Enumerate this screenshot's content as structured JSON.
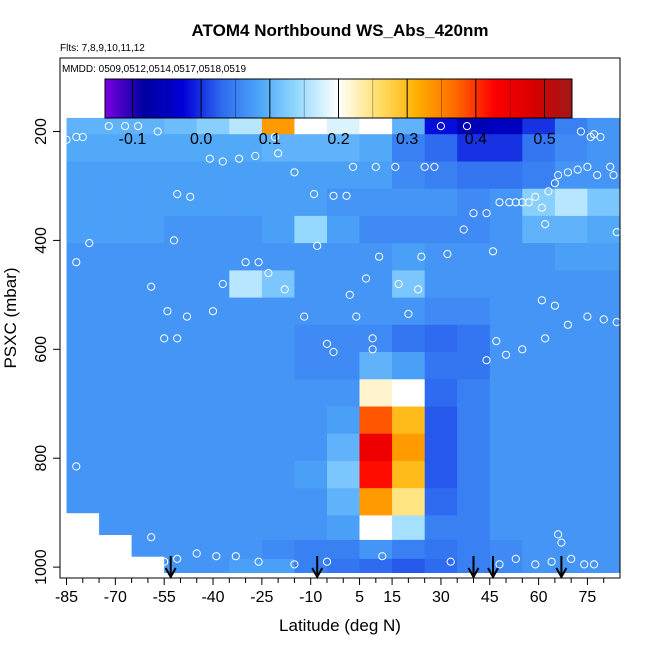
{
  "chart_data": {
    "type": "heatmap",
    "title": "ATOM4 Northbound WS_Abs_420nm",
    "flights_note": "Flts: 7,8,9,10,11,12",
    "dates_note": "MMDD: 0509,0512,0514,0517,0518,0519",
    "xlabel": "Latitude (deg N)",
    "ylabel": "PSXC (mbar)",
    "x_ticks": [
      -85,
      -70,
      -55,
      -40,
      -25,
      -10,
      5,
      15,
      30,
      45,
      60,
      75
    ],
    "x_tick_labels": [
      "-85",
      "-70",
      "-55",
      "-40",
      "-25",
      "-10",
      "5",
      "15",
      "30",
      "45",
      "60",
      "75"
    ],
    "y_ticks": [
      200,
      400,
      600,
      800,
      1000
    ],
    "y_tick_labels": [
      "200",
      "400",
      "600",
      "800",
      "1000"
    ],
    "xlim": [
      -87,
      85
    ],
    "ylim": [
      1020,
      65
    ],
    "y_reversed": true,
    "colorbar": {
      "range": [
        -0.14,
        0.54
      ],
      "ticks": [
        -0.1,
        0.0,
        0.1,
        0.2,
        0.3,
        0.4,
        0.5
      ],
      "tick_labels": [
        "-0.1",
        "0.0",
        "0.1",
        "0.2",
        "0.3",
        "0.4",
        "0.5"
      ],
      "colors": [
        "#7a00e0",
        "#0000a0",
        "#0000d8",
        "#2e6bf0",
        "#4ea6f8",
        "#9adcff",
        "#ffffff",
        "#ffe070",
        "#ffb000",
        "#ff6a00",
        "#ff0000",
        "#d80000",
        "#a01818"
      ]
    },
    "arrow_latitudes": [
      -53,
      -8,
      40,
      46,
      67
    ],
    "columns": [
      {
        "lat": -80,
        "bottom": 900,
        "values": [
          0.1,
          0.09,
          0.08,
          0.08,
          0.08,
          0.07,
          0.07,
          0.07,
          0.07,
          0.07,
          0.07,
          0.07,
          0.07,
          0.07,
          0.07,
          0.07,
          0.07,
          0.07
        ]
      },
      {
        "lat": -70,
        "bottom": 940,
        "values": [
          0.1,
          0.09,
          0.08,
          0.08,
          0.08,
          0.07,
          0.07,
          0.07,
          0.07,
          0.07,
          0.07,
          0.07,
          0.07,
          0.07,
          0.07,
          0.07,
          0.07,
          0.07
        ]
      },
      {
        "lat": -60,
        "bottom": 980,
        "values": [
          0.1,
          0.09,
          0.08,
          0.08,
          0.08,
          0.07,
          0.07,
          0.07,
          0.07,
          0.07,
          0.07,
          0.07,
          0.07,
          0.07,
          0.07,
          0.07,
          0.07,
          0.07
        ]
      },
      {
        "lat": -50,
        "bottom": 1010,
        "values": [
          0.11,
          0.09,
          0.08,
          0.08,
          0.07,
          0.07,
          0.07,
          0.07,
          0.07,
          0.07,
          0.07,
          0.07,
          0.07,
          0.07,
          0.07,
          0.07,
          0.07,
          0.07
        ]
      },
      {
        "lat": -40,
        "bottom": 1010,
        "values": [
          0.13,
          0.09,
          0.08,
          0.08,
          0.07,
          0.07,
          0.07,
          0.07,
          0.07,
          0.07,
          0.07,
          0.07,
          0.07,
          0.07,
          0.07,
          0.07,
          0.07,
          0.07
        ]
      },
      {
        "lat": -30,
        "bottom": 1010,
        "values": [
          0.16,
          0.09,
          0.08,
          0.08,
          0.07,
          0.07,
          0.16,
          0.07,
          0.07,
          0.07,
          0.07,
          0.07,
          0.07,
          0.07,
          0.07,
          0.07,
          0.07,
          0.08
        ]
      },
      {
        "lat": -20,
        "bottom": 1010,
        "values": [
          0.33,
          0.1,
          0.08,
          0.08,
          0.08,
          0.07,
          0.12,
          0.07,
          0.07,
          0.07,
          0.07,
          0.07,
          0.07,
          0.07,
          0.07,
          0.07,
          0.06,
          0.08
        ]
      },
      {
        "lat": -10,
        "bottom": 1010,
        "values": [
          0.2,
          0.1,
          0.08,
          0.08,
          0.14,
          0.07,
          0.07,
          0.07,
          0.06,
          0.06,
          0.07,
          0.07,
          0.07,
          0.08,
          0.07,
          0.07,
          0.05,
          0.05
        ]
      },
      {
        "lat": 0,
        "bottom": 1010,
        "values": [
          0.18,
          0.1,
          0.08,
          0.07,
          0.08,
          0.07,
          0.07,
          0.07,
          0.06,
          0.06,
          0.07,
          0.08,
          0.1,
          0.12,
          0.1,
          0.08,
          0.05,
          0.04
        ]
      },
      {
        "lat": 10,
        "bottom": 1010,
        "values": [
          0.2,
          0.09,
          0.08,
          0.07,
          0.06,
          0.07,
          0.07,
          0.07,
          0.06,
          0.1,
          0.22,
          0.38,
          0.45,
          0.42,
          0.33,
          0.2,
          0.07,
          0.03
        ]
      },
      {
        "lat": 20,
        "bottom": 1010,
        "values": [
          0.1,
          0.05,
          0.06,
          0.07,
          0.06,
          0.08,
          0.12,
          0.07,
          0.04,
          0.08,
          0.2,
          0.3,
          0.33,
          0.3,
          0.25,
          0.15,
          0.05,
          0.02
        ]
      },
      {
        "lat": 30,
        "bottom": 1010,
        "values": [
          -0.02,
          0.03,
          0.05,
          0.07,
          0.06,
          0.07,
          0.07,
          0.06,
          0.03,
          0.04,
          0.03,
          0.02,
          0.02,
          0.02,
          0.03,
          0.05,
          0.04,
          0.03
        ]
      },
      {
        "lat": 40,
        "bottom": 1010,
        "values": [
          -0.06,
          0.0,
          0.04,
          0.06,
          0.06,
          0.07,
          0.07,
          0.06,
          0.04,
          0.04,
          0.05,
          0.05,
          0.05,
          0.05,
          0.05,
          0.05,
          0.05,
          0.05
        ]
      },
      {
        "lat": 50,
        "bottom": 1010,
        "values": [
          -0.05,
          0.0,
          0.04,
          0.07,
          0.07,
          0.07,
          0.07,
          0.07,
          0.07,
          0.07,
          0.07,
          0.07,
          0.07,
          0.07,
          0.07,
          0.07,
          0.06,
          0.06
        ]
      },
      {
        "lat": 60,
        "bottom": 1010,
        "values": [
          0.0,
          0.04,
          0.05,
          0.13,
          0.1,
          0.07,
          0.07,
          0.07,
          0.07,
          0.07,
          0.07,
          0.07,
          0.07,
          0.07,
          0.07,
          0.07,
          0.07,
          0.07
        ]
      },
      {
        "lat": 70,
        "bottom": 1010,
        "values": [
          0.05,
          0.06,
          0.07,
          0.16,
          0.1,
          0.08,
          0.07,
          0.07,
          0.07,
          0.07,
          0.07,
          0.07,
          0.07,
          0.07,
          0.07,
          0.07,
          0.07,
          0.07
        ]
      },
      {
        "lat": 80,
        "bottom": 1010,
        "values": [
          0.07,
          0.07,
          0.07,
          0.12,
          0.09,
          0.08,
          0.07,
          0.07,
          0.07,
          0.07,
          0.07,
          0.07,
          0.07,
          0.07,
          0.07,
          0.07,
          0.07,
          0.07
        ]
      }
    ],
    "levels": [
      180,
      230,
      280,
      330,
      380,
      430,
      480,
      530,
      580,
      630,
      680,
      730,
      780,
      830,
      880,
      930,
      970,
      1000
    ],
    "points": [
      {
        "lat": -72,
        "p": 190
      },
      {
        "lat": -67,
        "p": 190
      },
      {
        "lat": -63,
        "p": 190
      },
      {
        "lat": -57,
        "p": 200
      },
      {
        "lat": -80,
        "p": 210
      },
      {
        "lat": -82,
        "p": 210
      },
      {
        "lat": -85,
        "p": 215
      },
      {
        "lat": -41,
        "p": 250
      },
      {
        "lat": -37,
        "p": 255
      },
      {
        "lat": -32,
        "p": 250
      },
      {
        "lat": -27,
        "p": 245
      },
      {
        "lat": -20,
        "p": 240
      },
      {
        "lat": -15,
        "p": 275
      },
      {
        "lat": -51,
        "p": 315
      },
      {
        "lat": -47,
        "p": 320
      },
      {
        "lat": -9,
        "p": 315
      },
      {
        "lat": -3,
        "p": 318
      },
      {
        "lat": 1,
        "p": 318
      },
      {
        "lat": 3,
        "p": 265
      },
      {
        "lat": 10,
        "p": 265
      },
      {
        "lat": 16,
        "p": 265
      },
      {
        "lat": 25,
        "p": 265
      },
      {
        "lat": 28,
        "p": 265
      },
      {
        "lat": -21,
        "p": 210
      },
      {
        "lat": -87,
        "p": 370
      },
      {
        "lat": -78,
        "p": 405
      },
      {
        "lat": -52,
        "p": 400
      },
      {
        "lat": -82,
        "p": 440
      },
      {
        "lat": -30,
        "p": 440
      },
      {
        "lat": -26,
        "p": 440
      },
      {
        "lat": -8,
        "p": 410
      },
      {
        "lat": 11,
        "p": 430
      },
      {
        "lat": 24,
        "p": 430
      },
      {
        "lat": 32,
        "p": 425
      },
      {
        "lat": 37,
        "p": 380
      },
      {
        "lat": -59,
        "p": 485
      },
      {
        "lat": -37,
        "p": 480
      },
      {
        "lat": -23,
        "p": 460
      },
      {
        "lat": -18,
        "p": 490
      },
      {
        "lat": 7,
        "p": 470
      },
      {
        "lat": 17,
        "p": 480
      },
      {
        "lat": 23,
        "p": 490
      },
      {
        "lat": 2,
        "p": 500
      },
      {
        "lat": -54,
        "p": 530
      },
      {
        "lat": -48,
        "p": 540
      },
      {
        "lat": -40,
        "p": 530
      },
      {
        "lat": -12,
        "p": 540
      },
      {
        "lat": 4,
        "p": 540
      },
      {
        "lat": 20,
        "p": 535
      },
      {
        "lat": -55,
        "p": 580
      },
      {
        "lat": -51,
        "p": 580
      },
      {
        "lat": -5,
        "p": 590
      },
      {
        "lat": -3,
        "p": 605
      },
      {
        "lat": 9,
        "p": 580
      },
      {
        "lat": 9,
        "p": 600
      },
      {
        "lat": 44,
        "p": 620
      },
      {
        "lat": 47,
        "p": 585
      },
      {
        "lat": 50,
        "p": 610
      },
      {
        "lat": 55,
        "p": 600
      },
      {
        "lat": 62,
        "p": 580
      },
      {
        "lat": 69,
        "p": 555
      },
      {
        "lat": 75,
        "p": 540
      },
      {
        "lat": 80,
        "p": 545
      },
      {
        "lat": 84,
        "p": 550
      },
      {
        "lat": 40,
        "p": 350
      },
      {
        "lat": 44,
        "p": 350
      },
      {
        "lat": 48,
        "p": 330
      },
      {
        "lat": 51,
        "p": 330
      },
      {
        "lat": 53,
        "p": 330
      },
      {
        "lat": 55,
        "p": 330
      },
      {
        "lat": 57,
        "p": 330
      },
      {
        "lat": 59,
        "p": 320
      },
      {
        "lat": 61,
        "p": 340
      },
      {
        "lat": 63,
        "p": 310
      },
      {
        "lat": 65,
        "p": 295
      },
      {
        "lat": 66,
        "p": 280
      },
      {
        "lat": 69,
        "p": 275
      },
      {
        "lat": 72,
        "p": 270
      },
      {
        "lat": 75,
        "p": 265
      },
      {
        "lat": 78,
        "p": 280
      },
      {
        "lat": 82,
        "p": 265
      },
      {
        "lat": 83,
        "p": 280
      },
      {
        "lat": 84,
        "p": 385
      },
      {
        "lat": 62,
        "p": 370
      },
      {
        "lat": 61,
        "p": 510
      },
      {
        "lat": 65,
        "p": 520
      },
      {
        "lat": 73,
        "p": 200
      },
      {
        "lat": 76,
        "p": 210
      },
      {
        "lat": 77,
        "p": 205
      },
      {
        "lat": 79,
        "p": 210
      },
      {
        "lat": 46,
        "p": 420
      },
      {
        "lat": 30,
        "p": 190
      },
      {
        "lat": 38,
        "p": 190
      },
      {
        "lat": -55,
        "p": 990
      },
      {
        "lat": -51,
        "p": 985
      },
      {
        "lat": -45,
        "p": 975
      },
      {
        "lat": -39,
        "p": 980
      },
      {
        "lat": -33,
        "p": 980
      },
      {
        "lat": -26,
        "p": 990
      },
      {
        "lat": -15,
        "p": 995
      },
      {
        "lat": -5,
        "p": 990
      },
      {
        "lat": 12,
        "p": 980
      },
      {
        "lat": 33,
        "p": 990
      },
      {
        "lat": 48,
        "p": 995
      },
      {
        "lat": 53,
        "p": 985
      },
      {
        "lat": 59,
        "p": 995
      },
      {
        "lat": 64,
        "p": 990
      },
      {
        "lat": 70,
        "p": 985
      },
      {
        "lat": 74,
        "p": 995
      },
      {
        "lat": 77,
        "p": 995
      },
      {
        "lat": 66,
        "p": 940
      },
      {
        "lat": 67,
        "p": 955
      },
      {
        "lat": -59,
        "p": 945
      },
      {
        "lat": -82,
        "p": 815
      }
    ]
  }
}
